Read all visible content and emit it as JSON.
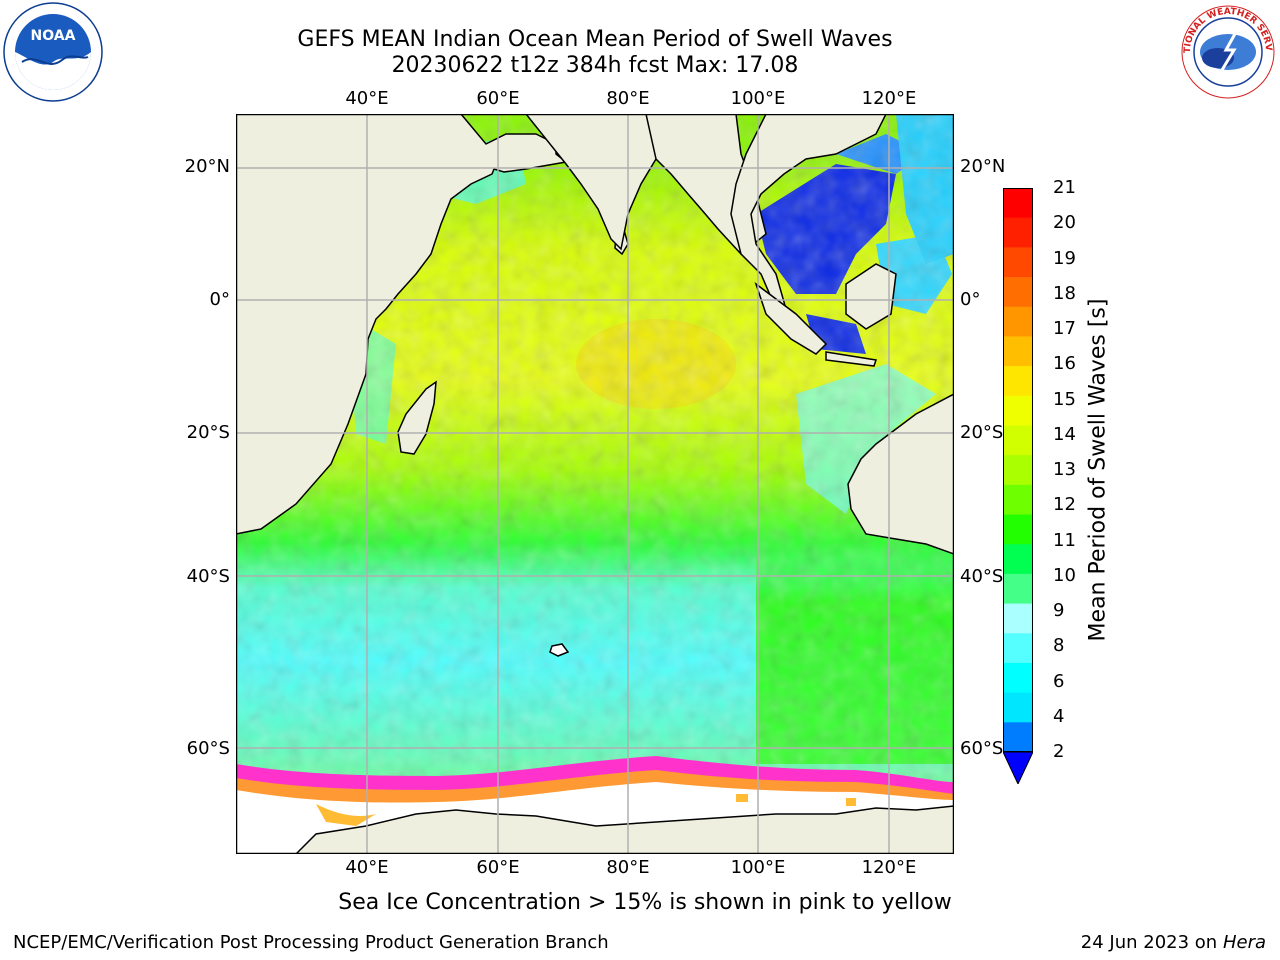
{
  "title": {
    "line1": "GEFS MEAN Indian Ocean Mean Period of Swell Waves",
    "line2": "20230622 t12z 384h fcst   Max: 17.08"
  },
  "logos": {
    "left": {
      "text": "NOAA",
      "ring_text": "NATIONAL OCEANIC AND ATMOSPHERIC ADMINISTRATION · U.S. DEPARTMENT OF COMMERCE",
      "icon": "noaa-logo-icon"
    },
    "right": {
      "ring_text": "NATIONAL WEATHER SERVICE",
      "icon": "nws-logo-icon"
    }
  },
  "map": {
    "lon_labels": [
      "40°E",
      "60°E",
      "80°E",
      "100°E",
      "120°E"
    ],
    "lat_labels": [
      "20°N",
      "0°",
      "20°S",
      "40°S",
      "60°S"
    ],
    "land_color": "#efefdf",
    "gridline_color": "#b0b0b0"
  },
  "colorbar": {
    "label": "Mean Period of Swell Waves [s]",
    "ticks": [
      "21",
      "20",
      "19",
      "18",
      "17",
      "16",
      "15",
      "14",
      "13",
      "12",
      "11",
      "10",
      "9",
      "8",
      "6",
      "4",
      "2"
    ],
    "colors_top_to_bottom": [
      "#ff0000",
      "#ff2000",
      "#ff4800",
      "#ff6e00",
      "#ff9600",
      "#ffbe00",
      "#ffe600",
      "#f0ff00",
      "#d2ff00",
      "#aaff00",
      "#6eff00",
      "#22ff00",
      "#00ff50",
      "#44ff88",
      "#aaffff",
      "#55ffff",
      "#00ffff",
      "#00e6ff",
      "#007dff"
    ],
    "under_color": "#0000ff"
  },
  "caption": "Sea Ice Concentration > 15% is shown in pink to yellow",
  "footer": {
    "left": "NCEP/EMC/Verification Post Processing Product Generation Branch",
    "date": "24 Jun 2023 on",
    "machine": "Hera"
  }
}
